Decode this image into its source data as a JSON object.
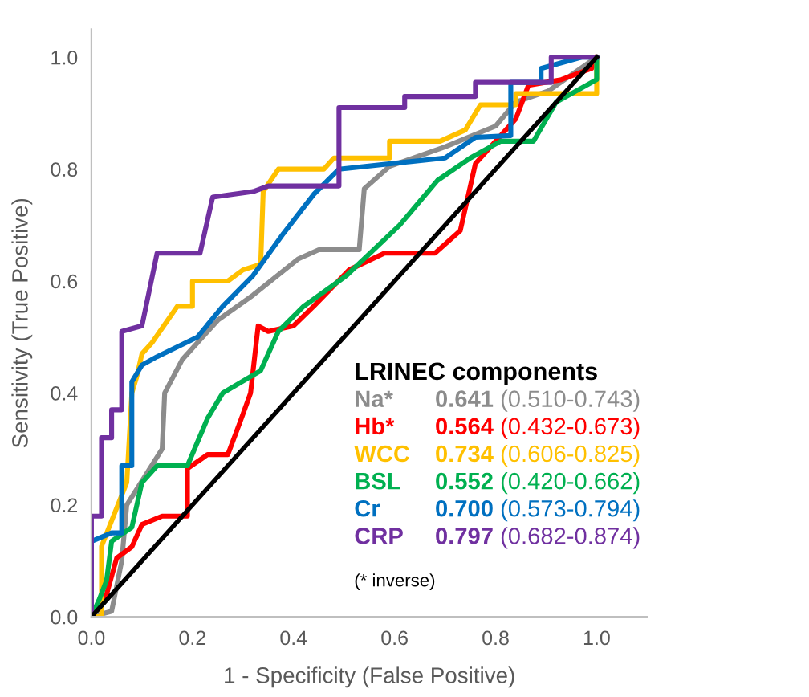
{
  "chart_data": {
    "type": "line",
    "xlabel": "1 - Specificity (False Positive)",
    "ylabel": "Sensitivity (True Positive)",
    "legend_title": "LRINEC components",
    "legend": "bottom right",
    "marker": "none",
    "line_style": "solid",
    "grid": false,
    "xlim": [
      0,
      1.1
    ],
    "ylim": [
      0,
      1.05
    ],
    "xticks": [
      {
        "value": 0,
        "label": "0.0"
      },
      {
        "value": 0.2,
        "label": "0.2"
      },
      {
        "value": 0.4,
        "label": "0.4"
      },
      {
        "value": 0.6,
        "label": "0.6"
      },
      {
        "value": 0.8,
        "label": "0.8"
      },
      {
        "value": 1,
        "label": "1.0"
      }
    ],
    "yticks": [
      {
        "value": 0,
        "label": "0.0"
      },
      {
        "value": 0.2,
        "label": "0.2"
      },
      {
        "value": 0.4,
        "label": "0.4"
      },
      {
        "value": 0.6,
        "label": "0.6"
      },
      {
        "value": 0.8,
        "label": "0.8"
      },
      {
        "value": 1,
        "label": "1.0"
      }
    ],
    "series": [
      {
        "name": "Na*",
        "color": "#8c8c8c",
        "x": [
          0,
          0.04,
          0.06,
          0.07,
          0.14,
          0.145,
          0.18,
          0.21,
          0.25,
          0.32,
          0.41,
          0.45,
          0.53,
          0.54,
          0.59,
          0.7,
          0.8,
          0.84,
          0.905,
          1
        ],
        "values": [
          0,
          0.01,
          0.1,
          0.2,
          0.3,
          0.4,
          0.46,
          0.49,
          0.53,
          0.575,
          0.64,
          0.656,
          0.656,
          0.765,
          0.805,
          0.84,
          0.877,
          0.92,
          0.94,
          1
        ]
      },
      {
        "name": "Hb*",
        "color": "#ff0000",
        "x": [
          0,
          0.03,
          0.05,
          0.08,
          0.1,
          0.14,
          0.19,
          0.19,
          0.23,
          0.27,
          0.295,
          0.315,
          0.33,
          0.35,
          0.4,
          0.44,
          0.51,
          0.58,
          0.68,
          0.73,
          0.76,
          0.8,
          0.84,
          0.865,
          0.93,
          0.99,
          1
        ],
        "values": [
          0,
          0.04,
          0.105,
          0.125,
          0.165,
          0.18,
          0.18,
          0.265,
          0.29,
          0.29,
          0.35,
          0.4,
          0.52,
          0.51,
          0.52,
          0.555,
          0.62,
          0.65,
          0.65,
          0.69,
          0.81,
          0.85,
          0.89,
          0.95,
          0.96,
          0.98,
          1
        ]
      },
      {
        "name": "WCC",
        "color": "#ffc000",
        "x": [
          0,
          0.02,
          0.02,
          0.07,
          0.08,
          0.09,
          0.1,
          0.12,
          0.17,
          0.2,
          0.2,
          0.27,
          0.3,
          0.335,
          0.34,
          0.37,
          0.46,
          0.48,
          0.59,
          0.59,
          0.69,
          0.74,
          0.77,
          0.84,
          0.84,
          1,
          1
        ],
        "values": [
          0,
          0,
          0.126,
          0.24,
          0.4,
          0.43,
          0.47,
          0.49,
          0.555,
          0.555,
          0.6,
          0.6,
          0.62,
          0.63,
          0.76,
          0.8,
          0.8,
          0.82,
          0.82,
          0.85,
          0.85,
          0.87,
          0.915,
          0.915,
          0.935,
          0.935,
          1
        ]
      },
      {
        "name": "BSL",
        "color": "#00b050",
        "x": [
          0,
          0.015,
          0.03,
          0.04,
          0.08,
          0.1,
          0.13,
          0.19,
          0.23,
          0.26,
          0.335,
          0.37,
          0.42,
          0.49,
          0.505,
          0.61,
          0.685,
          0.75,
          0.81,
          0.875,
          0.92,
          1,
          1
        ],
        "values": [
          0,
          0.03,
          0.065,
          0.135,
          0.16,
          0.24,
          0.27,
          0.27,
          0.355,
          0.4,
          0.44,
          0.51,
          0.555,
          0.6,
          0.61,
          0.7,
          0.78,
          0.82,
          0.85,
          0.85,
          0.92,
          0.96,
          1
        ]
      },
      {
        "name": "Cr",
        "color": "#0070c0",
        "x": [
          0,
          0,
          0.04,
          0.06,
          0.06,
          0.08,
          0.08,
          0.1,
          0.13,
          0.21,
          0.26,
          0.32,
          0.38,
          0.44,
          0.49,
          0.7,
          0.76,
          0.83,
          0.83,
          0.89,
          0.89,
          0.97,
          1
        ],
        "values": [
          0,
          0.135,
          0.15,
          0.15,
          0.27,
          0.27,
          0.42,
          0.45,
          0.465,
          0.5,
          0.555,
          0.61,
          0.685,
          0.755,
          0.8,
          0.82,
          0.857,
          0.86,
          0.955,
          0.955,
          0.98,
          1,
          1
        ]
      },
      {
        "name": "CRP",
        "color": "#7030a0",
        "x": [
          0,
          0,
          0.02,
          0.02,
          0.04,
          0.04,
          0.06,
          0.06,
          0.1,
          0.13,
          0.215,
          0.24,
          0.32,
          0.35,
          0.49,
          0.49,
          0.62,
          0.62,
          0.76,
          0.76,
          0.91,
          0.91,
          1
        ],
        "values": [
          0,
          0.18,
          0.18,
          0.32,
          0.32,
          0.37,
          0.37,
          0.51,
          0.52,
          0.65,
          0.65,
          0.75,
          0.76,
          0.77,
          0.77,
          0.91,
          0.91,
          0.93,
          0.93,
          0.955,
          0.955,
          1,
          1
        ]
      },
      {
        "color": "#000000",
        "x": [
          0,
          1
        ],
        "values": [
          0,
          1
        ]
      }
    ],
    "annotations": [
      "0.641 (0.510-0.743)",
      "0.564 (0.432-0.673)",
      "0.734 (0.606-0.825)",
      "0.552 (0.420-0.662)",
      "0.700 (0.573-0.794)",
      "0.797 (0.682-0.874)",
      "(* inverse)"
    ]
  }
}
